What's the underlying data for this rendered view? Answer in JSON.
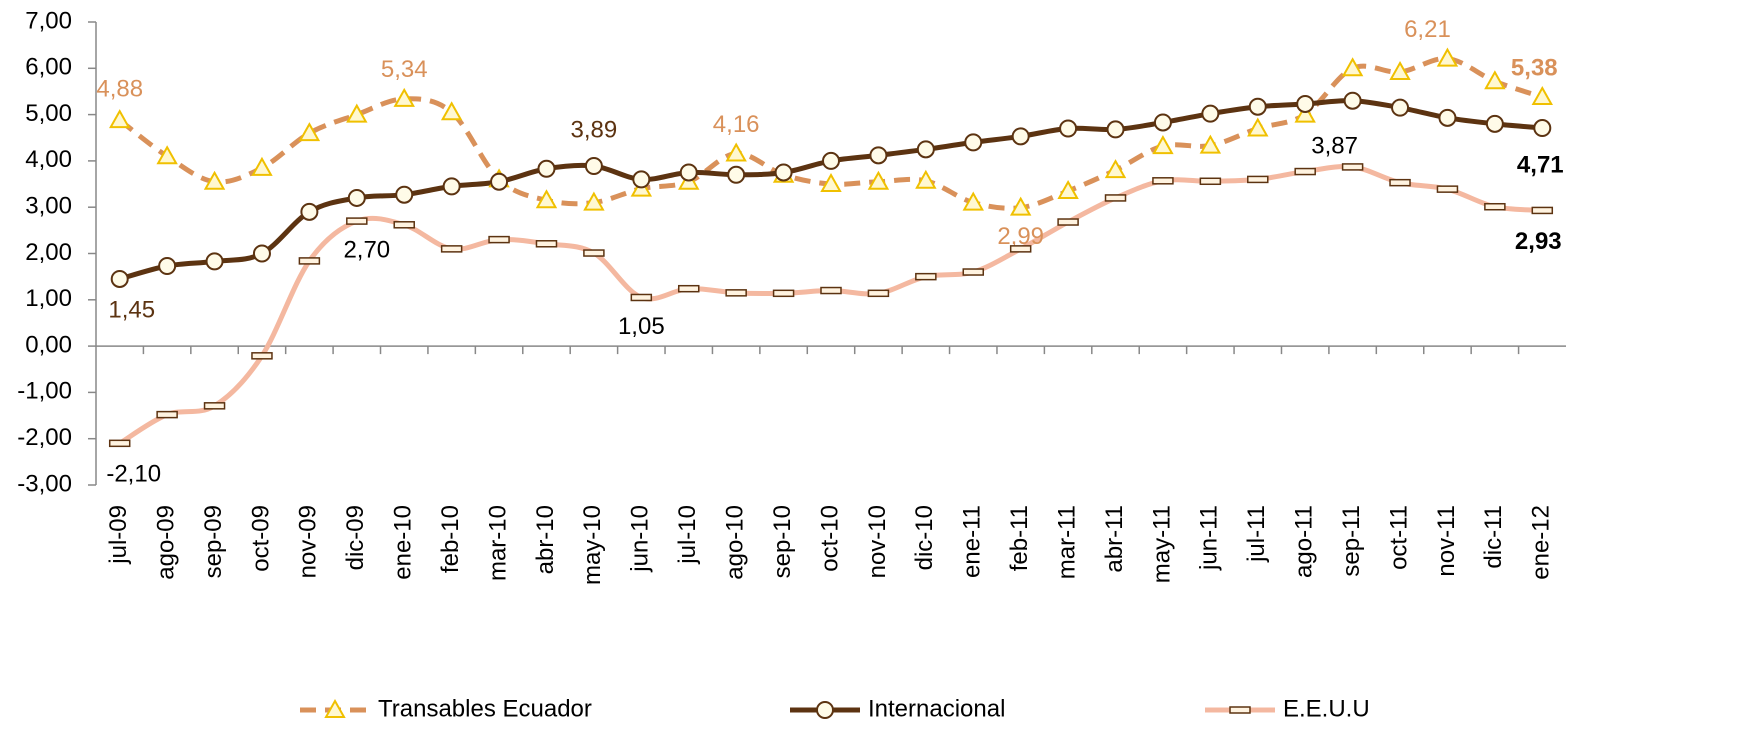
{
  "chart_data": {
    "type": "line",
    "categories": [
      "jul-09",
      "ago-09",
      "sep-09",
      "oct-09",
      "nov-09",
      "dic-09",
      "ene-10",
      "feb-10",
      "mar-10",
      "abr-10",
      "may-10",
      "jun-10",
      "jul-10",
      "ago-10",
      "sep-10",
      "oct-10",
      "nov-10",
      "dic-10",
      "ene-11",
      "feb-11",
      "mar-11",
      "abr-11",
      "may-11",
      "jun-11",
      "jul-11",
      "ago-11",
      "sep-11",
      "oct-11",
      "nov-11",
      "dic-11",
      "ene-12"
    ],
    "ylim": [
      -3,
      7
    ],
    "yticks": [
      {
        "value": -3,
        "label": "-3,00"
      },
      {
        "value": -2,
        "label": "-2,00"
      },
      {
        "value": -1,
        "label": "-1,00"
      },
      {
        "value": 0,
        "label": "0,00"
      },
      {
        "value": 1,
        "label": "1,00"
      },
      {
        "value": 2,
        "label": "2,00"
      },
      {
        "value": 3,
        "label": "3,00"
      },
      {
        "value": 4,
        "label": "4,00"
      },
      {
        "value": 5,
        "label": "5,00"
      },
      {
        "value": 6,
        "label": "6,00"
      },
      {
        "value": 7,
        "label": "7,00"
      }
    ],
    "legend": "bottom",
    "series": [
      {
        "name": "Transables Ecuador",
        "color": "#d9915a",
        "marker": "triangle",
        "dashed": true,
        "values": [
          4.88,
          4.1,
          3.55,
          3.85,
          4.6,
          5.0,
          5.34,
          5.05,
          3.6,
          3.15,
          3.1,
          3.4,
          3.55,
          4.16,
          3.7,
          3.5,
          3.55,
          3.57,
          3.1,
          2.99,
          3.35,
          3.8,
          4.32,
          4.33,
          4.7,
          5.0,
          6.0,
          5.92,
          6.21,
          5.72,
          5.38
        ],
        "value_labels": [
          "4,88",
          null,
          null,
          null,
          null,
          null,
          "5,34",
          null,
          null,
          null,
          null,
          null,
          null,
          "4,16",
          null,
          null,
          null,
          null,
          null,
          "2,99",
          null,
          null,
          null,
          null,
          null,
          null,
          null,
          null,
          "6,21",
          null,
          "5,38"
        ]
      },
      {
        "name": "Internacional",
        "color": "#5c3311",
        "marker": "circle",
        "dashed": false,
        "values": [
          1.45,
          1.73,
          1.83,
          2.0,
          2.9,
          3.2,
          3.27,
          3.45,
          3.55,
          3.83,
          3.89,
          3.6,
          3.75,
          3.7,
          3.75,
          4.0,
          4.12,
          4.25,
          4.4,
          4.53,
          4.7,
          4.68,
          4.83,
          5.02,
          5.17,
          5.23,
          5.3,
          5.15,
          4.93,
          4.8,
          4.71
        ],
        "value_labels": [
          "1,45",
          null,
          null,
          null,
          null,
          null,
          null,
          null,
          null,
          null,
          "3,89",
          null,
          null,
          null,
          null,
          null,
          null,
          null,
          null,
          null,
          null,
          null,
          null,
          null,
          null,
          null,
          null,
          null,
          null,
          null,
          "4,71"
        ]
      },
      {
        "name": "E.E.U.U",
        "color": "#f4b8a0",
        "marker": "bar",
        "dashed": false,
        "values": [
          -2.1,
          -1.48,
          -1.29,
          -0.21,
          1.84,
          2.7,
          2.62,
          2.1,
          2.3,
          2.21,
          2.01,
          1.05,
          1.24,
          1.15,
          1.14,
          1.2,
          1.14,
          1.5,
          1.6,
          2.1,
          2.68,
          3.2,
          3.57,
          3.56,
          3.6,
          3.77,
          3.87,
          3.53,
          3.39,
          3.01,
          2.93
        ],
        "value_labels": [
          "-2,10",
          null,
          null,
          null,
          null,
          "2,70",
          null,
          null,
          null,
          null,
          null,
          "1,05",
          null,
          null,
          null,
          null,
          null,
          null,
          null,
          null,
          null,
          null,
          null,
          null,
          null,
          null,
          "3,87",
          null,
          null,
          null,
          "2,93"
        ]
      }
    ]
  }
}
